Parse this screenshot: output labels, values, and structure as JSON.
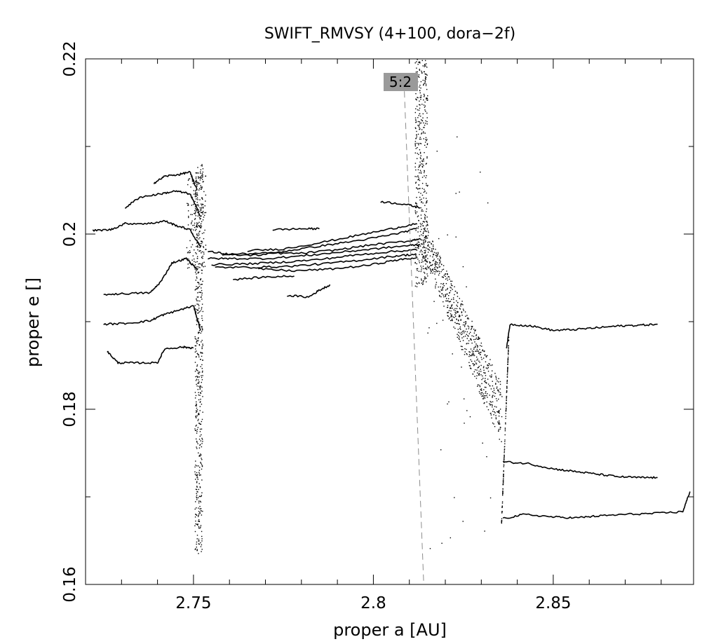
{
  "chart_data": {
    "type": "line",
    "title": "SWIFT_RMVSY (4+100, dora−2f)",
    "xlabel": "proper a [AU]",
    "ylabel": "proper e []",
    "xlim": [
      2.72,
      2.889
    ],
    "ylim": [
      0.16,
      0.22
    ],
    "x_ticks": [
      {
        "value": 2.75,
        "label": "2.75"
      },
      {
        "value": 2.8,
        "label": "2.8"
      },
      {
        "value": 2.85,
        "label": "2.85"
      }
    ],
    "x_minor_ticks": [
      2.73,
      2.74,
      2.76,
      2.77,
      2.78,
      2.79,
      2.81,
      2.82,
      2.83,
      2.84,
      2.86,
      2.87,
      2.88
    ],
    "y_ticks": [
      {
        "value": 0.16,
        "label": "0.16"
      },
      {
        "value": 0.18,
        "label": "0.18"
      },
      {
        "value": 0.2,
        "label": "0.2"
      },
      {
        "value": 0.22,
        "label": "0.22"
      }
    ],
    "y_minor_ticks": [
      0.17,
      0.19,
      0.21
    ],
    "grid": false,
    "resonance": {
      "label": "5:2",
      "line": [
        [
          2.8085,
          0.2175
        ],
        [
          2.814,
          0.16
        ]
      ],
      "color": "#8c8c8c"
    },
    "series": [
      {
        "points": [
          [
            2.722,
            0.2004
          ],
          [
            2.727,
            0.2005
          ],
          [
            2.731,
            0.2012
          ],
          [
            2.738,
            0.2012
          ],
          [
            2.742,
            0.2015
          ],
          [
            2.745,
            0.201
          ],
          [
            2.749,
            0.2005
          ],
          [
            2.752,
            0.1985
          ]
        ]
      },
      {
        "points": [
          [
            2.731,
            0.203
          ],
          [
            2.735,
            0.2042
          ],
          [
            2.741,
            0.2046
          ],
          [
            2.745,
            0.2049
          ],
          [
            2.749,
            0.2046
          ],
          [
            2.752,
            0.202
          ]
        ]
      },
      {
        "points": [
          [
            2.739,
            0.2058
          ],
          [
            2.742,
            0.2066
          ],
          [
            2.746,
            0.2068
          ],
          [
            2.749,
            0.2071
          ],
          [
            2.751,
            0.205
          ]
        ]
      },
      {
        "points": [
          [
            2.725,
            0.1931
          ],
          [
            2.731,
            0.1932
          ],
          [
            2.738,
            0.1933
          ],
          [
            2.741,
            0.1946
          ],
          [
            2.744,
            0.1967
          ],
          [
            2.748,
            0.1972
          ],
          [
            2.751,
            0.196
          ]
        ]
      },
      {
        "points": [
          [
            2.725,
            0.1897
          ],
          [
            2.731,
            0.1898
          ],
          [
            2.738,
            0.1901
          ],
          [
            2.741,
            0.1907
          ],
          [
            2.745,
            0.1912
          ],
          [
            2.75,
            0.1918
          ],
          [
            2.752,
            0.189
          ]
        ]
      },
      {
        "points": [
          [
            2.726,
            0.1866
          ],
          [
            2.729,
            0.1853
          ],
          [
            2.733,
            0.1853
          ],
          [
            2.74,
            0.1853
          ],
          [
            2.742,
            0.1869
          ],
          [
            2.747,
            0.1871
          ],
          [
            2.75,
            0.187
          ]
        ]
      },
      {
        "points": [
          [
            2.754,
            0.198
          ],
          [
            2.76,
            0.1977
          ],
          [
            2.77,
            0.1978
          ],
          [
            2.78,
            0.1978
          ],
          [
            2.79,
            0.1982
          ],
          [
            2.8,
            0.1988
          ],
          [
            2.81,
            0.1992
          ],
          [
            2.813,
            0.1995
          ]
        ]
      },
      {
        "points": [
          [
            2.754,
            0.1972
          ],
          [
            2.76,
            0.1972
          ],
          [
            2.77,
            0.1972
          ],
          [
            2.78,
            0.1975
          ],
          [
            2.79,
            0.1979
          ],
          [
            2.8,
            0.1983
          ],
          [
            2.81,
            0.1987
          ],
          [
            2.813,
            0.1988
          ]
        ]
      },
      {
        "points": [
          [
            2.755,
            0.1965
          ],
          [
            2.765,
            0.1966
          ],
          [
            2.775,
            0.1968
          ],
          [
            2.785,
            0.1971
          ],
          [
            2.795,
            0.1976
          ],
          [
            2.805,
            0.198
          ],
          [
            2.812,
            0.1982
          ]
        ]
      },
      {
        "points": [
          [
            2.756,
            0.1962
          ],
          [
            2.766,
            0.1962
          ],
          [
            2.776,
            0.1963
          ],
          [
            2.786,
            0.1966
          ],
          [
            2.796,
            0.197
          ],
          [
            2.806,
            0.1975
          ],
          [
            2.812,
            0.1977
          ]
        ]
      },
      {
        "points": [
          [
            2.758,
            0.1976
          ],
          [
            2.768,
            0.1976
          ],
          [
            2.778,
            0.1982
          ],
          [
            2.788,
            0.1988
          ],
          [
            2.798,
            0.1994
          ],
          [
            2.806,
            0.2
          ],
          [
            2.812,
            0.2006
          ]
        ]
      },
      {
        "points": [
          [
            2.765,
            0.1981
          ],
          [
            2.775,
            0.1983
          ],
          [
            2.785,
            0.199
          ],
          [
            2.795,
            0.1998
          ],
          [
            2.805,
            0.2006
          ],
          [
            2.812,
            0.2012
          ]
        ]
      },
      {
        "points": [
          [
            2.768,
            0.196
          ],
          [
            2.778,
            0.1958
          ],
          [
            2.788,
            0.196
          ],
          [
            2.798,
            0.1964
          ],
          [
            2.806,
            0.197
          ],
          [
            2.812,
            0.1973
          ]
        ]
      },
      {
        "points": [
          [
            2.772,
            0.2005
          ],
          [
            2.78,
            0.2006
          ],
          [
            2.785,
            0.2006
          ]
        ]
      },
      {
        "points": [
          [
            2.776,
            0.193
          ],
          [
            2.782,
            0.1928
          ],
          [
            2.785,
            0.1936
          ],
          [
            2.788,
            0.1942
          ]
        ]
      },
      {
        "points": [
          [
            2.761,
            0.1948
          ],
          [
            2.77,
            0.1951
          ],
          [
            2.778,
            0.1952
          ]
        ]
      },
      {
        "points": [
          [
            2.802,
            0.2037
          ],
          [
            2.809,
            0.2034
          ],
          [
            2.813,
            0.203
          ]
        ]
      },
      {
        "points": [
          [
            2.837,
            0.187
          ],
          [
            2.838,
            0.1897
          ],
          [
            2.844,
            0.1895
          ],
          [
            2.85,
            0.189
          ],
          [
            2.856,
            0.1891
          ],
          [
            2.862,
            0.1893
          ],
          [
            2.868,
            0.1895
          ],
          [
            2.874,
            0.1896
          ],
          [
            2.879,
            0.1897
          ]
        ]
      },
      {
        "points": [
          [
            2.836,
            0.174
          ],
          [
            2.843,
            0.1738
          ],
          [
            2.85,
            0.1732
          ],
          [
            2.856,
            0.1729
          ],
          [
            2.862,
            0.1726
          ],
          [
            2.868,
            0.1723
          ],
          [
            2.874,
            0.1722
          ],
          [
            2.879,
            0.1722
          ]
        ]
      },
      {
        "points": [
          [
            2.836,
            0.1675
          ],
          [
            2.842,
            0.168
          ],
          [
            2.85,
            0.1677
          ],
          [
            2.856,
            0.1676
          ],
          [
            2.862,
            0.1678
          ],
          [
            2.87,
            0.168
          ],
          [
            2.878,
            0.1681
          ],
          [
            2.886,
            0.1683
          ],
          [
            2.888,
            0.1706
          ]
        ]
      }
    ]
  }
}
